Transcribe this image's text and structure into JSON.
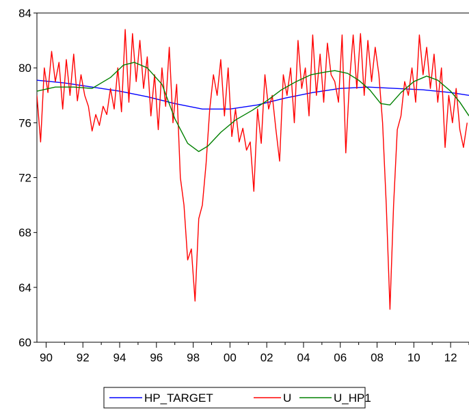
{
  "chart_data": {
    "type": "line",
    "title": "",
    "xlabel": "",
    "ylabel": "",
    "xlim": [
      1989.5,
      2013.0
    ],
    "ylim": [
      60,
      84
    ],
    "y_ticks": [
      60,
      64,
      68,
      72,
      76,
      80,
      84
    ],
    "x_ticks": [
      {
        "value": 1990,
        "label": "90"
      },
      {
        "value": 1992,
        "label": "92"
      },
      {
        "value": 1994,
        "label": "94"
      },
      {
        "value": 1996,
        "label": "96"
      },
      {
        "value": 1998,
        "label": "98"
      },
      {
        "value": 2000,
        "label": "00"
      },
      {
        "value": 2002,
        "label": "02"
      },
      {
        "value": 2004,
        "label": "04"
      },
      {
        "value": 2006,
        "label": "06"
      },
      {
        "value": 2008,
        "label": "08"
      },
      {
        "value": 2010,
        "label": "10"
      },
      {
        "value": 2012,
        "label": "12"
      }
    ],
    "grid": false,
    "legend": "bottom",
    "series": [
      {
        "name": "HP_TARGET",
        "color": "#0000ff",
        "x": [
          1989.5,
          1991,
          1992.5,
          1994,
          1995.5,
          1997,
          1998.5,
          2000,
          2001.5,
          2003,
          2004.5,
          2006,
          2007.5,
          2009,
          2010.5,
          2012,
          2013
        ],
        "y": [
          79.1,
          78.9,
          78.6,
          78.3,
          77.9,
          77.4,
          77.0,
          77.0,
          77.3,
          77.8,
          78.2,
          78.5,
          78.6,
          78.5,
          78.4,
          78.2,
          78.0
        ]
      },
      {
        "name": "U",
        "color": "#ff0000",
        "x": [
          1989.5,
          1989.7,
          1989.9,
          1990.1,
          1990.3,
          1990.5,
          1990.7,
          1990.9,
          1991.1,
          1991.3,
          1991.5,
          1991.7,
          1991.9,
          1992.1,
          1992.3,
          1992.5,
          1992.7,
          1992.9,
          1993.1,
          1993.3,
          1993.5,
          1993.7,
          1993.9,
          1994.1,
          1994.3,
          1994.5,
          1994.7,
          1994.9,
          1995.1,
          1995.3,
          1995.5,
          1995.7,
          1995.9,
          1996.1,
          1996.3,
          1996.5,
          1996.7,
          1996.9,
          1997.1,
          1997.3,
          1997.5,
          1997.7,
          1997.9,
          1998.1,
          1998.3,
          1998.5,
          1998.7,
          1998.9,
          1999.1,
          1999.3,
          1999.5,
          1999.7,
          1999.9,
          2000.1,
          2000.3,
          2000.5,
          2000.7,
          2000.9,
          2001.1,
          2001.3,
          2001.5,
          2001.7,
          2001.9,
          2002.1,
          2002.3,
          2002.5,
          2002.7,
          2002.9,
          2003.1,
          2003.3,
          2003.5,
          2003.7,
          2003.9,
          2004.1,
          2004.3,
          2004.5,
          2004.7,
          2004.9,
          2005.1,
          2005.3,
          2005.5,
          2005.7,
          2005.9,
          2006.1,
          2006.3,
          2006.5,
          2006.7,
          2006.9,
          2007.1,
          2007.3,
          2007.5,
          2007.7,
          2007.9,
          2008.1,
          2008.3,
          2008.5,
          2008.7,
          2008.9,
          2009.1,
          2009.3,
          2009.5,
          2009.7,
          2009.9,
          2010.1,
          2010.3,
          2010.5,
          2010.7,
          2010.9,
          2011.1,
          2011.3,
          2011.5,
          2011.7,
          2011.9,
          2012.1,
          2012.3,
          2012.5,
          2012.7,
          2012.9
        ],
        "y": [
          78.0,
          74.6,
          80.0,
          78.2,
          81.2,
          79.0,
          80.4,
          77.0,
          80.6,
          78.0,
          81.0,
          77.6,
          79.5,
          78.0,
          77.2,
          75.4,
          76.6,
          75.8,
          77.2,
          76.6,
          78.5,
          77.0,
          80.0,
          76.8,
          82.8,
          77.5,
          82.5,
          79.0,
          82.0,
          78.5,
          80.8,
          76.5,
          79.5,
          75.5,
          80.0,
          77.2,
          81.5,
          76.0,
          78.8,
          72.0,
          70.0,
          66.0,
          66.8,
          63.0,
          69.0,
          70.0,
          73.0,
          77.0,
          79.5,
          78.0,
          80.6,
          76.5,
          80.0,
          75.0,
          77.0,
          74.6,
          75.6,
          74.0,
          74.6,
          71.0,
          77.0,
          74.5,
          79.5,
          77.0,
          78.0,
          75.5,
          73.2,
          79.5,
          78.0,
          80.0,
          76.0,
          82.0,
          78.5,
          80.0,
          76.5,
          82.4,
          78.0,
          81.0,
          77.5,
          81.8,
          79.5,
          79.0,
          77.5,
          82.4,
          73.8,
          79.0,
          82.4,
          78.5,
          82.5,
          78.0,
          82.0,
          79.0,
          81.5,
          79.5,
          76.0,
          70.0,
          62.4,
          70.0,
          75.5,
          76.5,
          79.0,
          78.0,
          80.0,
          77.5,
          82.4,
          79.5,
          81.5,
          78.5,
          81.0,
          77.5,
          80.0,
          74.2,
          78.0,
          76.0,
          78.5,
          75.5,
          74.2,
          76.0
        ]
      },
      {
        "name": "U_HP1",
        "color": "#008000",
        "x": [
          1989.5,
          1990.5,
          1991.5,
          1992.5,
          1993.5,
          1994.2,
          1994.8,
          1995.5,
          1996.3,
          1997.0,
          1997.7,
          1998.3,
          1998.8,
          1999.5,
          2000.3,
          2001.2,
          2002.0,
          2002.8,
          2003.6,
          2004.4,
          2005.2,
          2005.7,
          2006.4,
          2007.0,
          2007.6,
          2008.2,
          2008.7,
          2009.3,
          2010.0,
          2010.7,
          2011.3,
          2012.0,
          2012.5,
          2013.0
        ],
        "y": [
          78.3,
          78.6,
          78.6,
          78.5,
          79.3,
          80.2,
          80.4,
          80.0,
          78.8,
          76.3,
          74.5,
          73.9,
          74.3,
          75.3,
          76.2,
          76.9,
          77.6,
          78.4,
          79.0,
          79.5,
          79.7,
          79.8,
          79.6,
          79.1,
          78.4,
          77.4,
          77.3,
          78.2,
          79.0,
          79.4,
          79.1,
          78.3,
          77.5,
          76.5
        ]
      }
    ]
  }
}
